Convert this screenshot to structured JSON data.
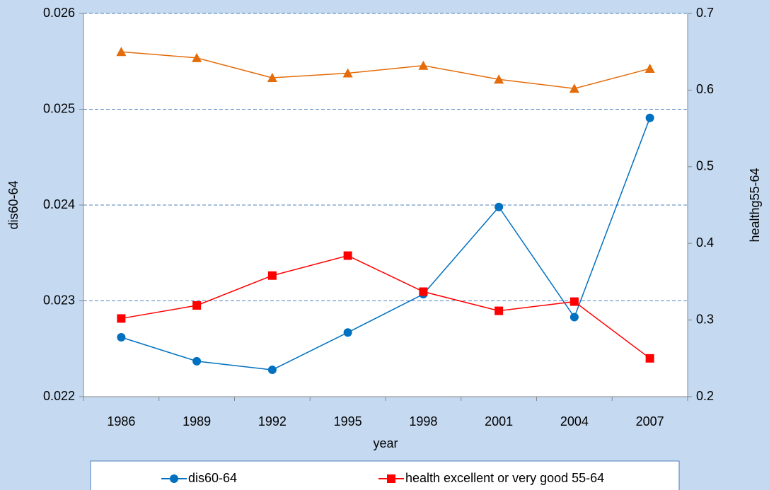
{
  "chart_data": {
    "type": "line",
    "x_label": "year",
    "y_label": "dis60-64",
    "y2_label": "healthg55-64",
    "categories": [
      "1986",
      "1989",
      "1992",
      "1995",
      "1998",
      "2001",
      "2004",
      "2007"
    ],
    "series": [
      {
        "name": "dis60-64",
        "color": "#0070c0",
        "marker": "circle",
        "values": [
          0.02262,
          0.02237,
          0.02228,
          0.02267,
          0.02307,
          0.02398,
          0.02283,
          0.02491
        ]
      },
      {
        "name": "health excellent or very good 55-64",
        "color": "#ff0000",
        "marker": "square",
        "axis": "y2",
        "values": [
          0.302,
          0.319,
          0.358,
          0.384,
          0.337,
          0.312,
          0.324,
          0.25
        ]
      },
      {
        "color": "#e46c0a",
        "marker": "triangle",
        "axis": "y2",
        "values": [
          0.65,
          0.642,
          0.616,
          0.622,
          0.632,
          0.614,
          0.602,
          0.628
        ]
      }
    ],
    "ylim": [
      0.022,
      0.026
    ],
    "yticks": [
      0.022,
      0.023,
      0.024,
      0.025,
      0.026
    ],
    "y2lim": [
      0.2,
      0.7
    ],
    "y2ticks": [
      0.2,
      0.3,
      0.4,
      0.5,
      0.6,
      0.7
    ],
    "grid": true,
    "legend": "bottom"
  }
}
